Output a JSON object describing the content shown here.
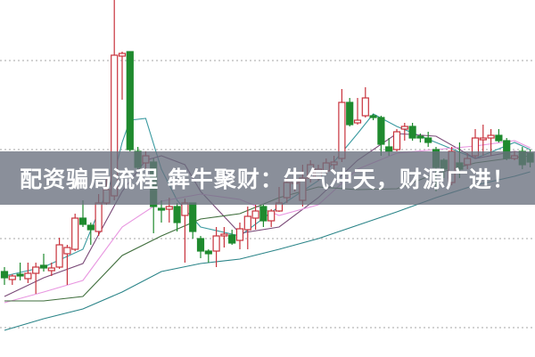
{
  "banner": {
    "text": "配资骗局流程 犇牛聚财：牛气冲天，财源广进！"
  },
  "colors": {
    "up": "#c8323c",
    "down": "#1f8a2e",
    "grid": "#b8b8b8",
    "banner": "#69707d"
  },
  "chart_data": {
    "type": "candlestick",
    "title": "",
    "xlabel": "",
    "ylabel": "",
    "ylim": [
      6.7,
      46.8
    ],
    "gridlines": [
      10,
      20,
      30,
      40
    ],
    "grid": true,
    "grid_style": "dotted horizontal",
    "candles": [
      [
        16.3,
        16.8,
        14.8,
        15.6
      ],
      [
        15.4,
        16.0,
        14.8,
        15.8
      ],
      [
        16.0,
        17.3,
        15.3,
        15.8
      ],
      [
        15.5,
        17.3,
        15.0,
        16.1
      ],
      [
        16.1,
        17.3,
        13.8,
        16.8
      ],
      [
        17.0,
        18.3,
        16.3,
        16.7
      ],
      [
        16.4,
        17.3,
        15.8,
        16.7
      ],
      [
        16.8,
        20.1,
        16.6,
        19.3
      ],
      [
        18.3,
        19.3,
        14.8,
        19.0
      ],
      [
        18.8,
        22.8,
        18.6,
        22.3
      ],
      [
        22.3,
        24.3,
        21.3,
        21.6
      ],
      [
        21.5,
        21.8,
        19.3,
        21.0
      ],
      [
        20.8,
        25.0,
        20.3,
        24.0
      ],
      [
        24.0,
        26.8,
        23.8,
        25.5
      ],
      [
        24.8,
        46.8,
        24.3,
        40.6
      ],
      [
        40.5,
        41.0,
        35.6,
        40.8
      ],
      [
        41.0,
        41.0,
        29.8,
        30.0
      ],
      [
        29.8,
        30.3,
        27.8,
        28.0
      ],
      [
        28.5,
        29.8,
        27.8,
        29.3
      ],
      [
        28.6,
        29.0,
        20.6,
        23.6
      ],
      [
        23.4,
        24.3,
        21.8,
        23.2
      ],
      [
        23.3,
        24.6,
        21.8,
        23.6
      ],
      [
        23.6,
        24.0,
        20.8,
        21.8
      ],
      [
        22.6,
        24.5,
        17.3,
        24.0
      ],
      [
        24.0,
        24.0,
        20.0,
        20.8
      ],
      [
        20.0,
        20.3,
        17.8,
        18.6
      ],
      [
        18.6,
        18.8,
        17.3,
        18.3
      ],
      [
        18.6,
        21.3,
        16.8,
        20.3
      ],
      [
        20.3,
        21.3,
        19.0,
        20.5
      ],
      [
        20.4,
        21.0,
        19.3,
        19.5
      ],
      [
        19.8,
        21.8,
        18.8,
        21.1
      ],
      [
        21.0,
        23.6,
        18.8,
        22.5
      ],
      [
        22.3,
        23.8,
        21.0,
        23.1
      ],
      [
        23.6,
        23.8,
        21.3,
        22.0
      ],
      [
        22.0,
        23.3,
        21.3,
        23.1
      ],
      [
        23.1,
        25.8,
        23.0,
        24.0
      ],
      [
        24.6,
        26.8,
        24.0,
        26.3
      ],
      [
        26.2,
        27.3,
        25.3,
        26.5
      ],
      [
        24.3,
        28.3,
        23.6,
        26.8
      ],
      [
        26.8,
        28.8,
        26.3,
        28.3
      ],
      [
        26.8,
        28.3,
        26.5,
        27.8
      ],
      [
        27.6,
        29.0,
        27.3,
        28.5
      ],
      [
        28.3,
        29.3,
        27.8,
        28.6
      ],
      [
        29.0,
        36.8,
        28.6,
        35.3
      ],
      [
        35.3,
        35.8,
        32.6,
        32.8
      ],
      [
        33.0,
        35.8,
        32.8,
        33.3
      ],
      [
        33.8,
        37.0,
        33.6,
        35.8
      ],
      [
        33.8,
        34.0,
        33.3,
        33.6
      ],
      [
        33.6,
        33.8,
        29.3,
        30.6
      ],
      [
        30.3,
        31.3,
        29.3,
        29.8
      ],
      [
        30.0,
        32.3,
        29.8,
        32.0
      ],
      [
        32.3,
        33.0,
        31.0,
        32.6
      ],
      [
        32.6,
        33.0,
        31.0,
        31.3
      ],
      [
        31.5,
        31.8,
        30.8,
        31.3
      ],
      [
        31.3,
        32.0,
        30.3,
        30.8
      ],
      [
        30.0,
        30.3,
        25.3,
        28.0
      ],
      [
        28.8,
        29.0,
        26.8,
        27.8
      ],
      [
        26.3,
        30.3,
        26.0,
        29.8
      ],
      [
        28.5,
        30.8,
        26.8,
        27.8
      ],
      [
        28.3,
        29.6,
        27.8,
        29.0
      ],
      [
        29.3,
        32.3,
        29.0,
        31.3
      ],
      [
        31.1,
        32.8,
        29.3,
        31.3
      ],
      [
        31.3,
        32.3,
        29.3,
        31.6
      ],
      [
        31.6,
        32.3,
        30.8,
        31.0
      ],
      [
        31.0,
        31.3,
        28.8,
        29.0
      ],
      [
        29.0,
        29.8,
        28.8,
        29.3
      ],
      [
        29.8,
        30.3,
        27.8,
        28.3
      ],
      [
        29.6,
        30.0,
        28.0,
        28.6
      ]
    ],
    "candle_fields": [
      "open",
      "high",
      "low",
      "close"
    ],
    "moving_averages": [
      {
        "color": "#3a9aa0",
        "points": [
          [
            0,
            15.8
          ],
          [
            5,
            16.8
          ],
          [
            10,
            18.8
          ],
          [
            14,
            27.3
          ],
          [
            15,
            30.8
          ],
          [
            16,
            33.3
          ],
          [
            18,
            33.5
          ],
          [
            20,
            27.8
          ],
          [
            22,
            24.3
          ],
          [
            25,
            21.3
          ],
          [
            30,
            20.3
          ],
          [
            35,
            23.6
          ],
          [
            40,
            26.5
          ],
          [
            45,
            31.8
          ],
          [
            47,
            34.0
          ],
          [
            50,
            32.6
          ],
          [
            55,
            30.8
          ],
          [
            60,
            29.0
          ],
          [
            65,
            30.8
          ],
          [
            67,
            30.0
          ]
        ]
      },
      {
        "color": "#7a4a78",
        "points": [
          [
            0,
            13.5
          ],
          [
            5,
            15.6
          ],
          [
            10,
            17.2
          ],
          [
            15,
            25.3
          ],
          [
            18,
            28.8
          ],
          [
            20,
            29.3
          ],
          [
            23,
            28.3
          ],
          [
            25,
            25.3
          ],
          [
            30,
            20.6
          ],
          [
            35,
            21.3
          ],
          [
            40,
            24.6
          ],
          [
            45,
            28.8
          ],
          [
            50,
            31.8
          ],
          [
            55,
            31.5
          ],
          [
            60,
            29.0
          ],
          [
            65,
            29.8
          ],
          [
            67,
            29.6
          ]
        ]
      },
      {
        "color": "#e896e0",
        "points": [
          [
            0,
            12.8
          ],
          [
            5,
            14.0
          ],
          [
            10,
            15.3
          ],
          [
            15,
            21.3
          ],
          [
            20,
            24.2
          ],
          [
            25,
            25.0
          ],
          [
            30,
            24.4
          ],
          [
            35,
            22.6
          ],
          [
            40,
            23.8
          ],
          [
            45,
            27.8
          ],
          [
            50,
            29.6
          ],
          [
            55,
            30.0
          ],
          [
            60,
            30.4
          ],
          [
            65,
            31.0
          ],
          [
            67,
            30.2
          ]
        ]
      },
      {
        "color": "#3f6e3c",
        "points": [
          [
            0,
            13.0
          ],
          [
            5,
            13.0
          ],
          [
            10,
            13.5
          ],
          [
            15,
            18.1
          ],
          [
            20,
            20.3
          ],
          [
            25,
            22.2
          ],
          [
            30,
            22.8
          ],
          [
            35,
            24.6
          ],
          [
            40,
            25.8
          ],
          [
            45,
            25.5
          ],
          [
            50,
            25.6
          ],
          [
            55,
            27.3
          ],
          [
            60,
            28.5
          ],
          [
            65,
            29.1
          ],
          [
            67,
            29.3
          ]
        ]
      },
      {
        "color": "#2a8488",
        "points": [
          [
            0,
            9.7
          ],
          [
            5,
            11.0
          ],
          [
            10,
            12.1
          ],
          [
            15,
            14.0
          ],
          [
            20,
            16.3
          ],
          [
            25,
            17.2
          ],
          [
            30,
            17.7
          ],
          [
            35,
            18.8
          ],
          [
            40,
            20.0
          ],
          [
            45,
            21.5
          ],
          [
            50,
            23.0
          ],
          [
            55,
            24.6
          ],
          [
            60,
            26.0
          ],
          [
            65,
            27.0
          ],
          [
            67,
            27.5
          ]
        ]
      }
    ]
  }
}
